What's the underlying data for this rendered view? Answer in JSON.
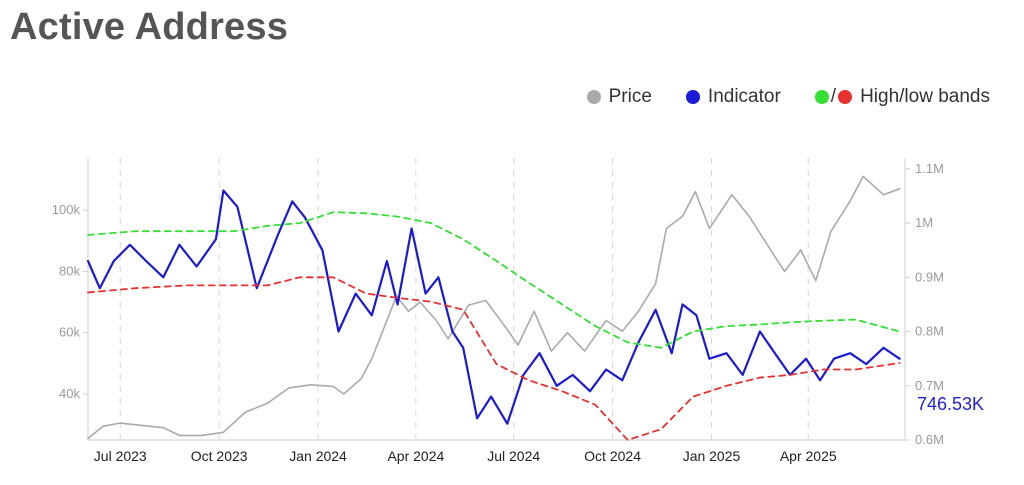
{
  "title": "Active Address",
  "legend": {
    "price": "Price",
    "indicator": "Indicator",
    "bands_sep": "/",
    "bands": "High/low bands",
    "colors": {
      "price": "#aaaaaa",
      "indicator": "#1a1ad6",
      "high": "#33e033",
      "low": "#e83030"
    }
  },
  "chart_data": {
    "type": "line",
    "x_range": [
      "2023-06-01",
      "2025-06-30"
    ],
    "x_ticks": [
      {
        "label": "Jul 2023",
        "date": "2023-07-01"
      },
      {
        "label": "Oct 2023",
        "date": "2023-10-01"
      },
      {
        "label": "Jan 2024",
        "date": "2024-01-01"
      },
      {
        "label": "Apr 2024",
        "date": "2024-04-01"
      },
      {
        "label": "Jul 2024",
        "date": "2024-07-01"
      },
      {
        "label": "Oct 2024",
        "date": "2024-10-01"
      },
      {
        "label": "Jan 2025",
        "date": "2025-01-01"
      },
      {
        "label": "Apr 2025",
        "date": "2025-04-01"
      }
    ],
    "y_left": {
      "range": [
        25000,
        117000
      ],
      "ticks": [
        {
          "label": "40k",
          "value": 40000
        },
        {
          "label": "60k",
          "value": 60000
        },
        {
          "label": "80k",
          "value": 80000
        },
        {
          "label": "100k",
          "value": 100000
        }
      ]
    },
    "y_right": {
      "range": [
        0.6,
        1.12
      ],
      "ticks": [
        {
          "label": "0.6M",
          "value": 0.6
        },
        {
          "label": "0.7M",
          "value": 0.7
        },
        {
          "label": "0.8M",
          "value": 0.8
        },
        {
          "label": "0.9M",
          "value": 0.9
        },
        {
          "label": "1M",
          "value": 1.0
        },
        {
          "label": "1.1M",
          "value": 1.1
        }
      ]
    },
    "last_value_label": "746.53K",
    "series": [
      {
        "name": "Price",
        "axis": "left",
        "color": "#aaaaaa",
        "points": [
          [
            "2023-06-01",
            25500
          ],
          [
            "2023-06-15",
            29500
          ],
          [
            "2023-07-01",
            30500
          ],
          [
            "2023-07-20",
            29800
          ],
          [
            "2023-08-10",
            29000
          ],
          [
            "2023-08-25",
            26500
          ],
          [
            "2023-09-15",
            26500
          ],
          [
            "2023-10-05",
            27500
          ],
          [
            "2023-10-25",
            34000
          ],
          [
            "2023-11-15",
            37000
          ],
          [
            "2023-12-05",
            42000
          ],
          [
            "2023-12-25",
            43000
          ],
          [
            "2024-01-15",
            42500
          ],
          [
            "2024-01-25",
            40000
          ],
          [
            "2024-02-10",
            45000
          ],
          [
            "2024-02-20",
            51500
          ],
          [
            "2024-03-05",
            64000
          ],
          [
            "2024-03-14",
            72000
          ],
          [
            "2024-03-25",
            67000
          ],
          [
            "2024-04-05",
            70000
          ],
          [
            "2024-04-20",
            64000
          ],
          [
            "2024-05-01",
            58000
          ],
          [
            "2024-05-20",
            69000
          ],
          [
            "2024-06-05",
            70500
          ],
          [
            "2024-06-25",
            61000
          ],
          [
            "2024-07-05",
            56000
          ],
          [
            "2024-07-20",
            67000
          ],
          [
            "2024-08-05",
            54000
          ],
          [
            "2024-08-20",
            60000
          ],
          [
            "2024-09-05",
            54000
          ],
          [
            "2024-09-25",
            64000
          ],
          [
            "2024-10-10",
            60500
          ],
          [
            "2024-10-25",
            67000
          ],
          [
            "2024-11-10",
            76000
          ],
          [
            "2024-11-20",
            94000
          ],
          [
            "2024-12-05",
            98000
          ],
          [
            "2024-12-17",
            106000
          ],
          [
            "2024-12-30",
            94000
          ],
          [
            "2025-01-20",
            105000
          ],
          [
            "2025-02-05",
            98000
          ],
          [
            "2025-02-25",
            87000
          ],
          [
            "2025-03-10",
            80000
          ],
          [
            "2025-03-25",
            87000
          ],
          [
            "2025-04-08",
            77000
          ],
          [
            "2025-04-22",
            93000
          ],
          [
            "2025-05-10",
            103000
          ],
          [
            "2025-05-22",
            111000
          ],
          [
            "2025-06-10",
            105000
          ],
          [
            "2025-06-25",
            107000
          ]
        ]
      },
      {
        "name": "Indicator",
        "axis": "right",
        "color": "#1a1ad6",
        "points": [
          [
            "2023-06-01",
            0.93
          ],
          [
            "2023-06-12",
            0.88
          ],
          [
            "2023-06-25",
            0.93
          ],
          [
            "2023-07-10",
            0.96
          ],
          [
            "2023-07-25",
            0.93
          ],
          [
            "2023-08-10",
            0.9
          ],
          [
            "2023-08-25",
            0.96
          ],
          [
            "2023-09-10",
            0.92
          ],
          [
            "2023-09-28",
            0.97
          ],
          [
            "2023-10-05",
            1.06
          ],
          [
            "2023-10-18",
            1.03
          ],
          [
            "2023-11-05",
            0.88
          ],
          [
            "2023-11-25",
            0.98
          ],
          [
            "2023-12-08",
            1.04
          ],
          [
            "2023-12-20",
            1.01
          ],
          [
            "2024-01-05",
            0.95
          ],
          [
            "2024-01-20",
            0.8
          ],
          [
            "2024-02-05",
            0.87
          ],
          [
            "2024-02-20",
            0.83
          ],
          [
            "2024-03-05",
            0.93
          ],
          [
            "2024-03-15",
            0.85
          ],
          [
            "2024-03-28",
            0.99
          ],
          [
            "2024-04-10",
            0.87
          ],
          [
            "2024-04-22",
            0.9
          ],
          [
            "2024-05-05",
            0.8
          ],
          [
            "2024-05-15",
            0.77
          ],
          [
            "2024-05-28",
            0.64
          ],
          [
            "2024-06-10",
            0.68
          ],
          [
            "2024-06-25",
            0.63
          ],
          [
            "2024-07-10",
            0.72
          ],
          [
            "2024-07-25",
            0.76
          ],
          [
            "2024-08-10",
            0.7
          ],
          [
            "2024-08-25",
            0.72
          ],
          [
            "2024-09-10",
            0.69
          ],
          [
            "2024-09-25",
            0.73
          ],
          [
            "2024-10-10",
            0.71
          ],
          [
            "2024-10-25",
            0.78
          ],
          [
            "2024-11-10",
            0.84
          ],
          [
            "2024-11-25",
            0.76
          ],
          [
            "2024-12-05",
            0.85
          ],
          [
            "2024-12-18",
            0.83
          ],
          [
            "2024-12-30",
            0.75
          ],
          [
            "2025-01-15",
            0.76
          ],
          [
            "2025-01-30",
            0.72
          ],
          [
            "2025-02-15",
            0.8
          ],
          [
            "2025-03-01",
            0.76
          ],
          [
            "2025-03-15",
            0.72
          ],
          [
            "2025-03-30",
            0.75
          ],
          [
            "2025-04-12",
            0.71
          ],
          [
            "2025-04-25",
            0.75
          ],
          [
            "2025-05-10",
            0.76
          ],
          [
            "2025-05-25",
            0.74
          ],
          [
            "2025-06-10",
            0.77
          ],
          [
            "2025-06-25",
            0.75
          ]
        ]
      },
      {
        "name": "High band",
        "axis": "right",
        "color": "#33e033",
        "dashed": true,
        "points": [
          [
            "2023-06-01",
            0.978
          ],
          [
            "2023-07-15",
            0.985
          ],
          [
            "2023-09-01",
            0.985
          ],
          [
            "2023-10-15",
            0.985
          ],
          [
            "2023-11-15",
            0.995
          ],
          [
            "2023-12-15",
            1.0
          ],
          [
            "2024-01-15",
            1.02
          ],
          [
            "2024-02-15",
            1.018
          ],
          [
            "2024-03-15",
            1.012
          ],
          [
            "2024-04-15",
            1.0
          ],
          [
            "2024-05-15",
            0.97
          ],
          [
            "2024-06-15",
            0.93
          ],
          [
            "2024-07-15",
            0.89
          ],
          [
            "2024-08-15",
            0.85
          ],
          [
            "2024-09-15",
            0.81
          ],
          [
            "2024-10-15",
            0.78
          ],
          [
            "2024-11-15",
            0.77
          ],
          [
            "2024-12-15",
            0.8
          ],
          [
            "2025-01-15",
            0.81
          ],
          [
            "2025-02-15",
            0.813
          ],
          [
            "2025-03-15",
            0.817
          ],
          [
            "2025-04-15",
            0.82
          ],
          [
            "2025-05-15",
            0.822
          ],
          [
            "2025-06-25",
            0.8
          ]
        ]
      },
      {
        "name": "Low band",
        "axis": "right",
        "color": "#e83030",
        "dashed": true,
        "points": [
          [
            "2023-06-01",
            0.872
          ],
          [
            "2023-07-15",
            0.88
          ],
          [
            "2023-09-01",
            0.885
          ],
          [
            "2023-10-15",
            0.885
          ],
          [
            "2023-11-15",
            0.885
          ],
          [
            "2023-12-15",
            0.9
          ],
          [
            "2024-01-15",
            0.9
          ],
          [
            "2024-02-15",
            0.87
          ],
          [
            "2024-03-15",
            0.862
          ],
          [
            "2024-04-15",
            0.855
          ],
          [
            "2024-05-15",
            0.84
          ],
          [
            "2024-06-15",
            0.74
          ],
          [
            "2024-07-15",
            0.71
          ],
          [
            "2024-08-15",
            0.69
          ],
          [
            "2024-09-15",
            0.665
          ],
          [
            "2024-10-15",
            0.6
          ],
          [
            "2024-11-15",
            0.62
          ],
          [
            "2024-12-15",
            0.68
          ],
          [
            "2025-01-15",
            0.7
          ],
          [
            "2025-02-15",
            0.715
          ],
          [
            "2025-03-15",
            0.72
          ],
          [
            "2025-04-15",
            0.73
          ],
          [
            "2025-05-15",
            0.73
          ],
          [
            "2025-06-25",
            0.742
          ]
        ]
      }
    ]
  }
}
